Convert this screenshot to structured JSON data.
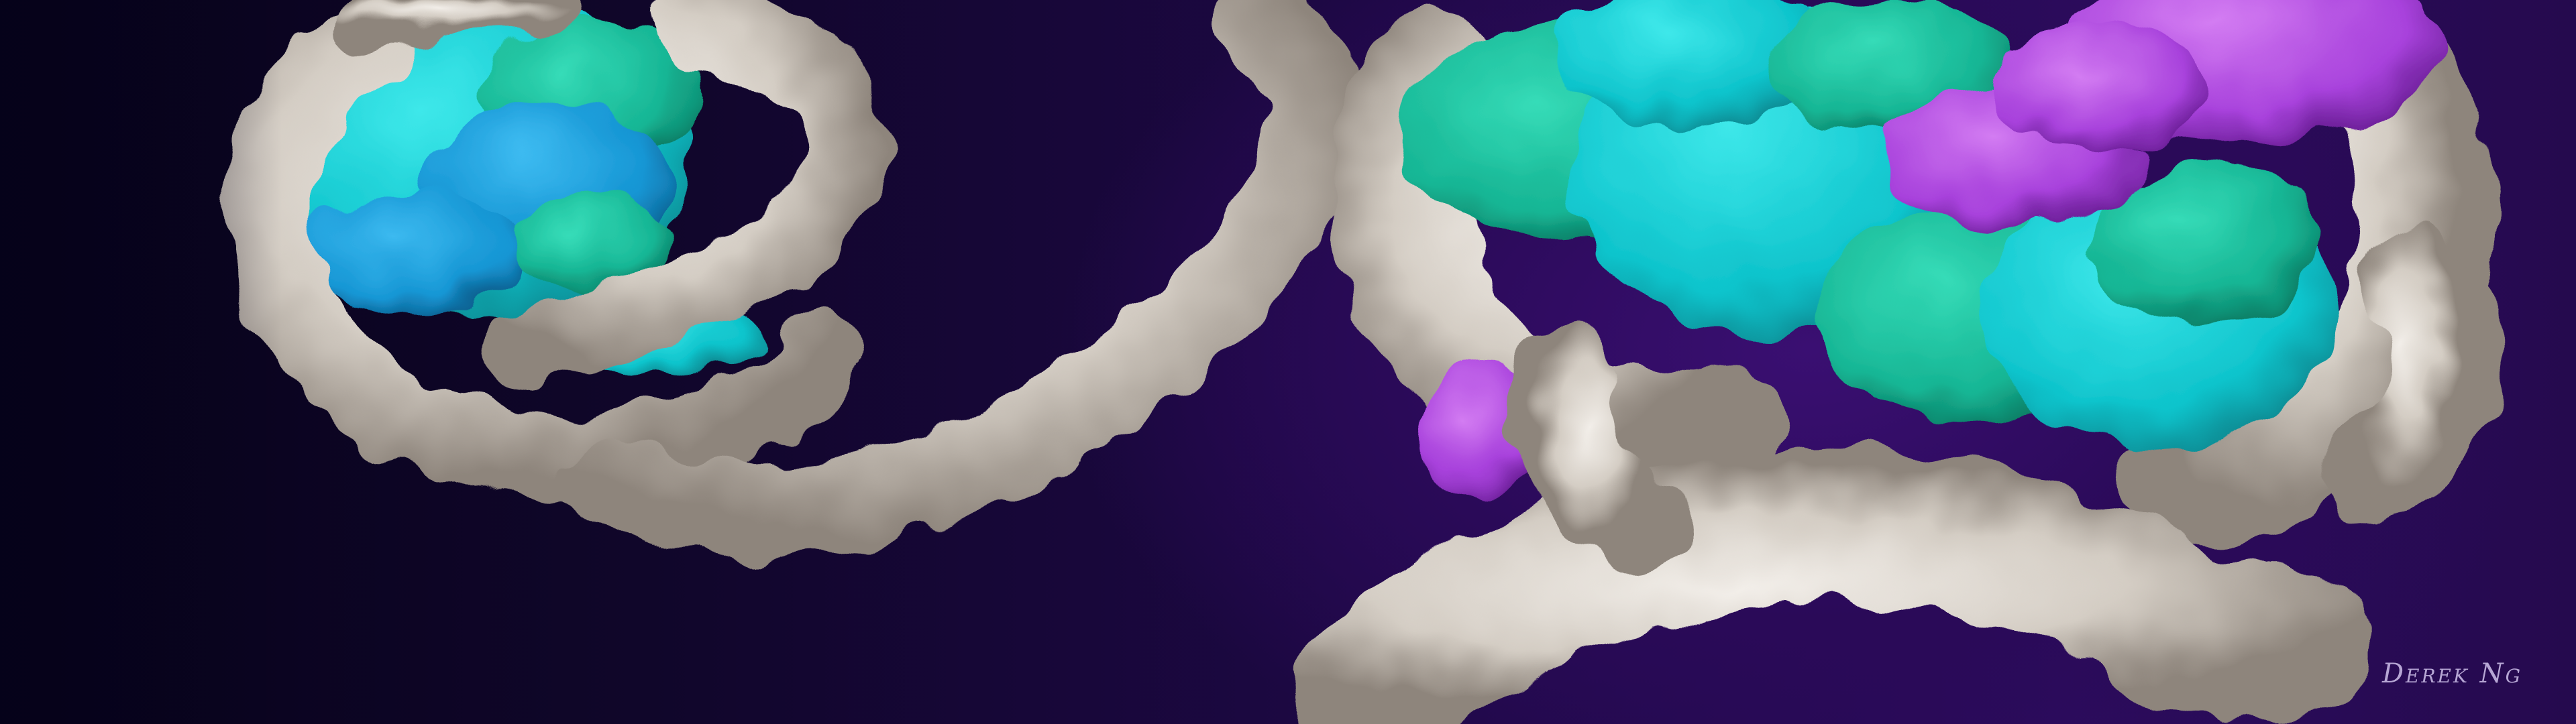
{
  "artwork": {
    "subject": "nucleosome-dna-protein-render",
    "signature": "Derek Ng"
  },
  "colors": {
    "background_dark": "#0b0520",
    "background_purple": "#34106a",
    "dna": "#dcd6cf",
    "dna_shadow": "#9e958c",
    "histone_cyan": "#10d2d8",
    "histone_teal": "#18c8a6",
    "histone_blue": "#1aa0dc",
    "histone_green": "#20c48a",
    "histone_magenta": "#b24ae0",
    "signature": "#b6a6d4"
  },
  "icons": {
    "signature_mark": "signature-text"
  }
}
